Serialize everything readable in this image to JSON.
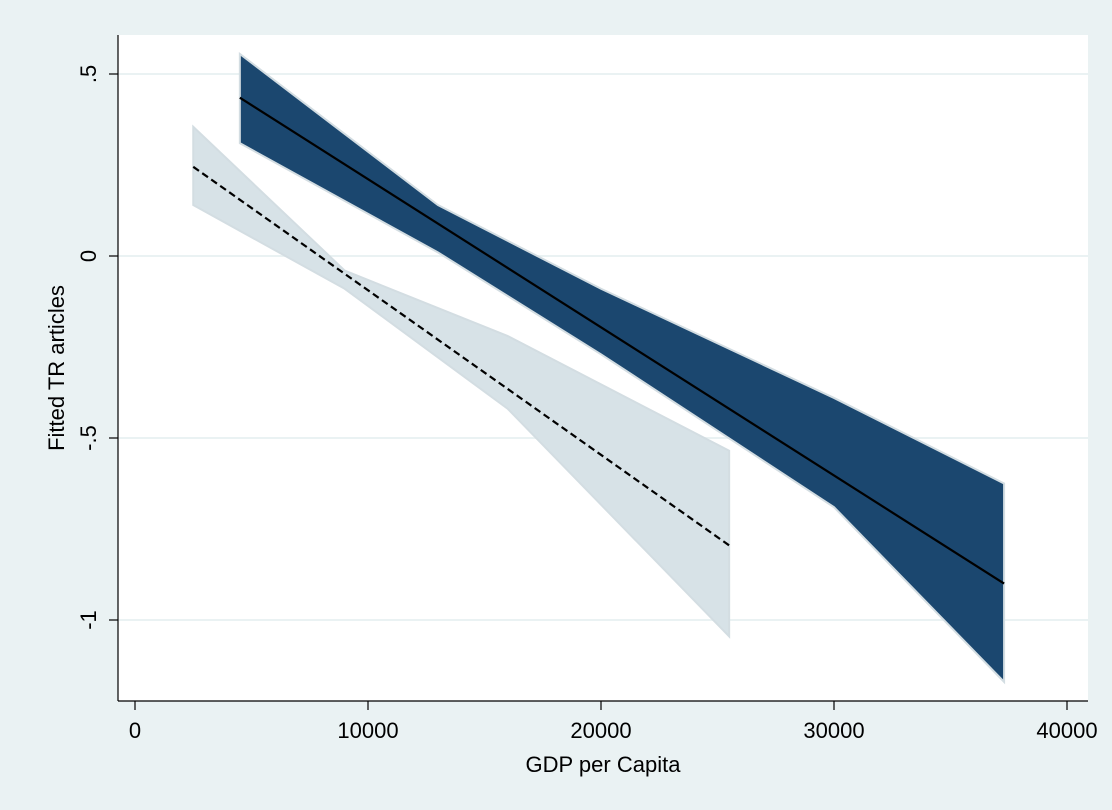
{
  "chart_data": {
    "type": "line",
    "title": "",
    "xlabel": "GDP per Capita",
    "ylabel": "Fitted TR articles",
    "xlim": [
      0,
      40000
    ],
    "ylim": [
      -1.2,
      0.6
    ],
    "x_ticks": [
      0,
      10000,
      20000,
      30000,
      40000
    ],
    "x_tick_labels": [
      "0",
      "10000",
      "20000",
      "30000",
      "40000"
    ],
    "y_ticks": [
      0.5,
      0,
      -0.5,
      -1
    ],
    "y_tick_labels": [
      ".5",
      "0",
      "-.5",
      "-1"
    ],
    "grid": "horizontal",
    "series": [
      {
        "line_style": "solid",
        "color": "#000000",
        "band_color": "#1b476f",
        "x": [
          4500,
          37300
        ],
        "y": [
          0.435,
          -0.9
        ],
        "band_x": [
          4500,
          13000,
          20000,
          30000,
          37300
        ],
        "band_lower": [
          0.31,
          0.01,
          -0.27,
          -0.69,
          -1.17
        ],
        "band_upper": [
          0.555,
          0.14,
          -0.09,
          -0.39,
          -0.625
        ]
      },
      {
        "line_style": "dashed",
        "color": "#000000",
        "band_color": "#d7e2e7",
        "x": [
          2500,
          25500
        ],
        "y": [
          0.245,
          -0.795
        ],
        "band_x": [
          2500,
          9000,
          16000,
          25500
        ],
        "band_lower": [
          0.14,
          -0.09,
          -0.42,
          -1.045
        ],
        "band_upper": [
          0.355,
          -0.04,
          -0.22,
          -0.535
        ]
      }
    ]
  }
}
